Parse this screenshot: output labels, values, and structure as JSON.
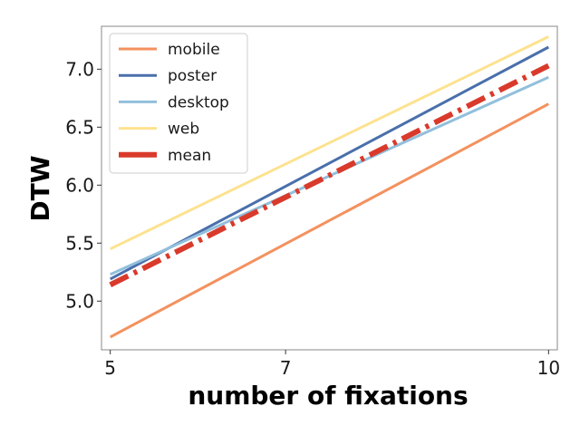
{
  "chart_data": {
    "type": "line",
    "title": "",
    "xlabel": "number of fixations",
    "ylabel": "DTW",
    "xlim": [
      4.9,
      10.1
    ],
    "ylim": [
      4.58,
      7.37
    ],
    "xticks": [
      5,
      7,
      10
    ],
    "yticks": [
      5.0,
      5.5,
      6.0,
      6.5,
      7.0
    ],
    "ytick_labels": [
      "5.0",
      "5.5",
      "6.0",
      "6.5",
      "7.0"
    ],
    "grid": false,
    "legend_position": "top-left",
    "series": [
      {
        "name": "mobile",
        "color": "#f4915e",
        "style": "solid",
        "x": [
          5,
          10
        ],
        "y": [
          4.69,
          6.7
        ]
      },
      {
        "name": "poster",
        "color": "#4a6fab",
        "style": "solid",
        "x": [
          5,
          10
        ],
        "y": [
          5.19,
          7.19
        ]
      },
      {
        "name": "desktop",
        "color": "#92bfdc",
        "style": "solid",
        "x": [
          5,
          10
        ],
        "y": [
          5.23,
          6.93
        ]
      },
      {
        "name": "web",
        "color": "#fde28f",
        "style": "solid",
        "x": [
          5,
          10
        ],
        "y": [
          5.45,
          7.28
        ]
      },
      {
        "name": "mean",
        "color": "#d93a2b",
        "style": "dash-dot",
        "x": [
          5,
          10
        ],
        "y": [
          5.14,
          7.03
        ]
      }
    ]
  }
}
